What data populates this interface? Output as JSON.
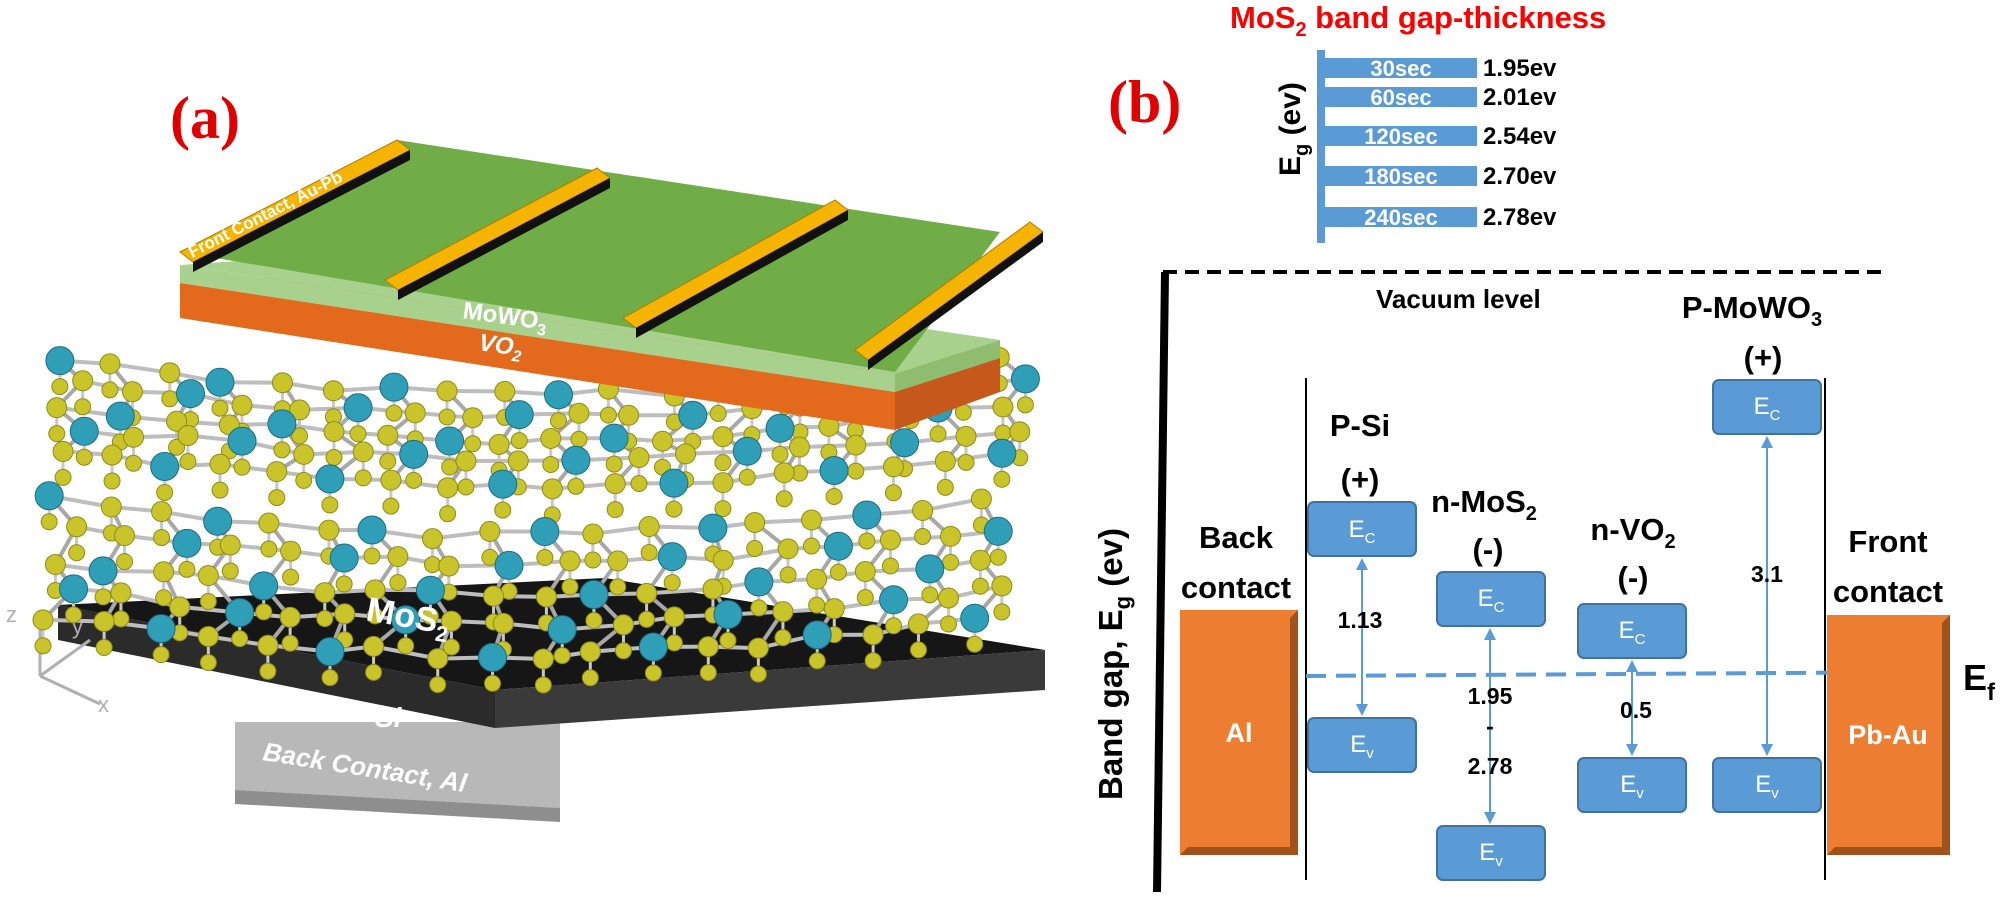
{
  "panel_a": {
    "label": "(a)",
    "layers": {
      "front_contact": "Front Contact, Au-Pb",
      "mowo3": {
        "base": "MoWO",
        "sub": "3"
      },
      "vo2": {
        "base": "VO",
        "sub": "2"
      },
      "mos2": {
        "base": "MoS",
        "sub": "2"
      },
      "si": "Si",
      "back_contact": "Back Contact, Al"
    },
    "axes": {
      "z": "z",
      "y": "y",
      "x": "x"
    },
    "colors": {
      "green": "#74b843",
      "orange": "#ed7d31",
      "gold": "#f5b400",
      "sulfur": "#c9c42a",
      "molybdenum": "#2f9fb8",
      "substrate": "#1e1e1e"
    }
  },
  "panel_b": {
    "label": "(b)",
    "inset": {
      "title": {
        "pre": "MoS",
        "sub": "2",
        "post": " band gap-thickness"
      },
      "ylabel": {
        "base": "E",
        "sub": "g",
        "post": " (ev)"
      },
      "bars": [
        {
          "label": "30sec",
          "value": "1.95ev"
        },
        {
          "label": "60sec",
          "value": "2.01ev"
        },
        {
          "label": "120sec",
          "value": "2.54ev"
        },
        {
          "label": "180sec",
          "value": "2.70ev"
        },
        {
          "label": "240sec",
          "value": "2.78ev"
        }
      ]
    },
    "vacuum_level": "Vacuum level",
    "ylabel": {
      "pre": "Band gap, E",
      "sub": "g",
      "post": " (ev)"
    },
    "fermi": {
      "base": "E",
      "sub": "f"
    },
    "back_contact": {
      "line1": "Back",
      "line2": "contact",
      "block": "Al"
    },
    "front_contact": {
      "line1": "Front",
      "line2": "contact",
      "block": "Pb-Au"
    },
    "materials": [
      {
        "name_pre": "P-Si",
        "name_sub": "",
        "sign": "(+)",
        "gap": "1.13"
      },
      {
        "name_pre": "n-MoS",
        "name_sub": "2",
        "sign": "(-)",
        "gap_top": "1.95",
        "gap_mid": "-",
        "gap_bot": "2.78"
      },
      {
        "name_pre": "n-VO",
        "name_sub": "2",
        "sign": "(-)",
        "gap": "0.5"
      },
      {
        "name_pre": "P-MoWO",
        "name_sub": "3",
        "sign": "(+)",
        "gap": "3.1"
      }
    ],
    "band_labels": {
      "ec_base": "E",
      "ec_sub": "C",
      "ev_base": "E",
      "ev_sub": "v"
    },
    "colors": {
      "band_box": "#5b9bd5",
      "band_border": "#41719c",
      "contact_orange": "#ed7d31",
      "contact_dark": "#a0521a",
      "fermi_line": "#5b9bd5",
      "title_red": "#ff0000"
    }
  }
}
